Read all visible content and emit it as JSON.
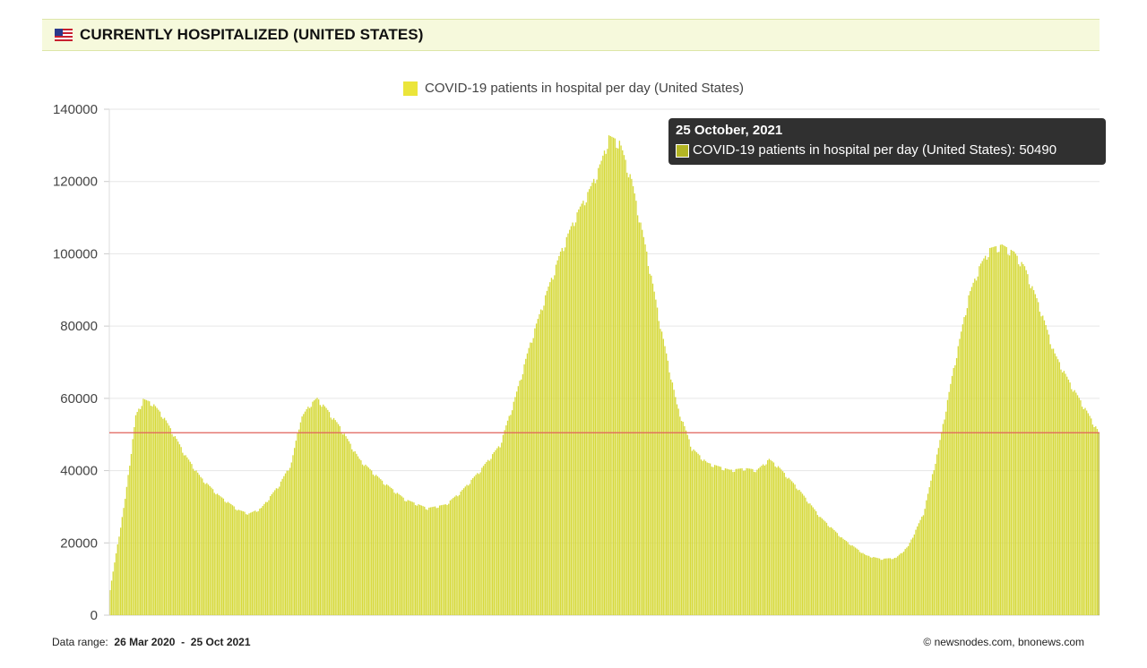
{
  "header": {
    "title": "CURRENTLY HOSPITALIZED (UNITED STATES)",
    "flag_icon": "us-flag-icon"
  },
  "colors": {
    "bar_fill": "#d6d93a",
    "bar_stroke": "#b4b428",
    "reference_line": "#e0605a",
    "header_bg": "#f6f9dc",
    "legend_swatch": "#ebe53a"
  },
  "tooltip": {
    "date": "25 October, 2021",
    "label": "COVID-19 patients in hospital per day (United States): 50490"
  },
  "footer": {
    "data_range_label": "Data range:",
    "data_range_start": "26 Mar 2020",
    "data_range_sep": "-",
    "data_range_end": "25 Oct 2021",
    "credit": "©  newsnodes.com, bnonews.com"
  },
  "chart_data": {
    "type": "bar",
    "series_name": "COVID-19 patients in hospital per day (United States)",
    "x_start": "26 Mar 2020",
    "x_end": "25 Oct 2021",
    "ylim": [
      0,
      140000
    ],
    "yticks": [
      0,
      20000,
      40000,
      60000,
      80000,
      100000,
      120000,
      140000
    ],
    "grid": true,
    "legend_position": "top-center",
    "reference_line_value": 50490,
    "highlighted_value": 50490,
    "anchors": [
      [
        0,
        7000
      ],
      [
        10,
        32000
      ],
      [
        17,
        55000
      ],
      [
        22,
        59500
      ],
      [
        28,
        58500
      ],
      [
        35,
        55000
      ],
      [
        42,
        50000
      ],
      [
        50,
        44000
      ],
      [
        60,
        38000
      ],
      [
        72,
        33000
      ],
      [
        85,
        29000
      ],
      [
        92,
        28000
      ],
      [
        100,
        29500
      ],
      [
        112,
        36000
      ],
      [
        120,
        42000
      ],
      [
        126,
        54000
      ],
      [
        132,
        58000
      ],
      [
        137,
        59800
      ],
      [
        143,
        57000
      ],
      [
        152,
        52000
      ],
      [
        165,
        43000
      ],
      [
        180,
        37000
      ],
      [
        195,
        32000
      ],
      [
        210,
        29500
      ],
      [
        222,
        30500
      ],
      [
        232,
        34000
      ],
      [
        245,
        40000
      ],
      [
        258,
        47000
      ],
      [
        268,
        60000
      ],
      [
        278,
        75000
      ],
      [
        288,
        88000
      ],
      [
        298,
        100000
      ],
      [
        308,
        110000
      ],
      [
        318,
        118000
      ],
      [
        325,
        125000
      ],
      [
        330,
        132000
      ],
      [
        337,
        130500
      ],
      [
        345,
        120000
      ],
      [
        355,
        100000
      ],
      [
        365,
        78000
      ],
      [
        375,
        58000
      ],
      [
        385,
        46000
      ],
      [
        395,
        42000
      ],
      [
        410,
        40000
      ],
      [
        420,
        40500
      ],
      [
        428,
        40000
      ],
      [
        436,
        43000
      ],
      [
        442,
        41000
      ],
      [
        455,
        35000
      ],
      [
        470,
        27000
      ],
      [
        485,
        21000
      ],
      [
        500,
        16500
      ],
      [
        510,
        15500
      ],
      [
        520,
        15800
      ],
      [
        528,
        19000
      ],
      [
        538,
        28000
      ],
      [
        548,
        46000
      ],
      [
        558,
        68000
      ],
      [
        568,
        88000
      ],
      [
        575,
        96000
      ],
      [
        582,
        101000
      ],
      [
        590,
        102000
      ],
      [
        598,
        100000
      ],
      [
        605,
        96000
      ],
      [
        615,
        85000
      ],
      [
        625,
        72000
      ],
      [
        635,
        64000
      ],
      [
        645,
        57000
      ],
      [
        654,
        50490
      ]
    ]
  }
}
